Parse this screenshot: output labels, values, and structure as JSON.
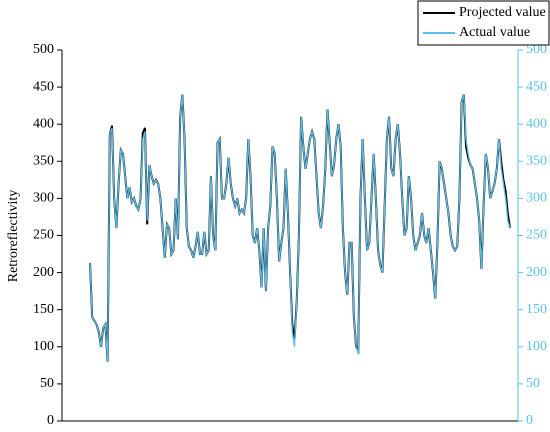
{
  "chart_data": {
    "type": "line",
    "ylabel": "Retroreflectivity",
    "ylim": [
      0,
      500
    ],
    "yticks": [
      0,
      50,
      100,
      150,
      200,
      250,
      300,
      350,
      400,
      450,
      500
    ],
    "y2lim": [
      0,
      500
    ],
    "y2ticks": [
      0,
      50,
      100,
      150,
      200,
      250,
      300,
      350,
      400,
      450,
      500
    ],
    "y2color": "#5bc0eb",
    "legend": "top-right",
    "series": [
      {
        "name": "Projected value",
        "color": "#000000",
        "values": [
          213,
          140,
          135,
          130,
          120,
          100,
          125,
          130,
          80,
          385,
          398,
          300,
          260,
          320,
          365,
          360,
          330,
          300,
          315,
          295,
          300,
          290,
          285,
          300,
          388,
          395,
          265,
          345,
          330,
          320,
          325,
          320,
          300,
          260,
          220,
          265,
          260,
          225,
          230,
          300,
          245,
          410,
          440,
          380,
          260,
          235,
          230,
          220,
          235,
          255,
          225,
          225,
          255,
          225,
          230,
          330,
          250,
          230,
          375,
          380,
          300,
          300,
          320,
          355,
          320,
          300,
          290,
          300,
          280,
          285,
          280,
          300,
          380,
          330,
          250,
          240,
          260,
          230,
          180,
          260,
          175,
          260,
          290,
          370,
          360,
          300,
          215,
          240,
          260,
          340,
          280,
          200,
          130,
          110,
          160,
          250,
          410,
          370,
          340,
          360,
          380,
          390,
          380,
          330,
          280,
          260,
          290,
          340,
          420,
          375,
          330,
          345,
          380,
          400,
          370,
          260,
          200,
          170,
          240,
          240,
          140,
          100,
          95,
          300,
          380,
          300,
          230,
          240,
          300,
          360,
          300,
          230,
          210,
          200,
          290,
          380,
          410,
          340,
          330,
          380,
          400,
          360,
          300,
          250,
          260,
          330,
          300,
          250,
          230,
          240,
          250,
          280,
          250,
          240,
          260,
          230,
          200,
          165,
          240,
          350,
          340,
          320,
          300,
          280,
          250,
          235,
          230,
          235,
          300,
          430,
          440,
          370,
          355,
          345,
          340,
          320,
          300,
          270,
          205,
          290,
          360,
          340,
          300,
          310,
          320,
          340,
          380,
          350,
          325,
          310,
          280,
          260
        ]
      },
      {
        "name": "Actual value",
        "color": "#5bc0eb",
        "axis": "y2",
        "values": [
          213,
          140,
          135,
          130,
          120,
          100,
          125,
          130,
          80,
          385,
          395,
          300,
          260,
          320,
          365,
          360,
          330,
          300,
          315,
          295,
          300,
          290,
          285,
          300,
          380,
          390,
          270,
          345,
          330,
          320,
          325,
          320,
          300,
          260,
          220,
          265,
          260,
          225,
          230,
          300,
          245,
          410,
          440,
          380,
          260,
          235,
          230,
          220,
          235,
          255,
          225,
          225,
          255,
          225,
          230,
          330,
          250,
          230,
          375,
          380,
          300,
          300,
          320,
          355,
          320,
          300,
          290,
          300,
          280,
          285,
          280,
          300,
          380,
          330,
          250,
          240,
          260,
          230,
          180,
          260,
          175,
          260,
          290,
          370,
          360,
          300,
          215,
          240,
          260,
          340,
          280,
          200,
          120,
          100,
          160,
          250,
          410,
          370,
          340,
          360,
          380,
          390,
          380,
          330,
          280,
          260,
          290,
          340,
          420,
          375,
          330,
          345,
          380,
          400,
          370,
          260,
          200,
          170,
          240,
          240,
          140,
          100,
          90,
          300,
          380,
          300,
          230,
          240,
          300,
          360,
          300,
          230,
          210,
          200,
          290,
          380,
          410,
          340,
          330,
          380,
          400,
          360,
          300,
          250,
          260,
          330,
          300,
          250,
          230,
          240,
          250,
          280,
          250,
          240,
          260,
          230,
          200,
          165,
          240,
          350,
          340,
          320,
          300,
          280,
          250,
          235,
          230,
          235,
          300,
          430,
          440,
          380,
          360,
          345,
          340,
          320,
          300,
          270,
          205,
          290,
          360,
          340,
          300,
          310,
          320,
          340,
          380,
          340,
          320,
          300,
          270,
          260
        ]
      }
    ]
  }
}
